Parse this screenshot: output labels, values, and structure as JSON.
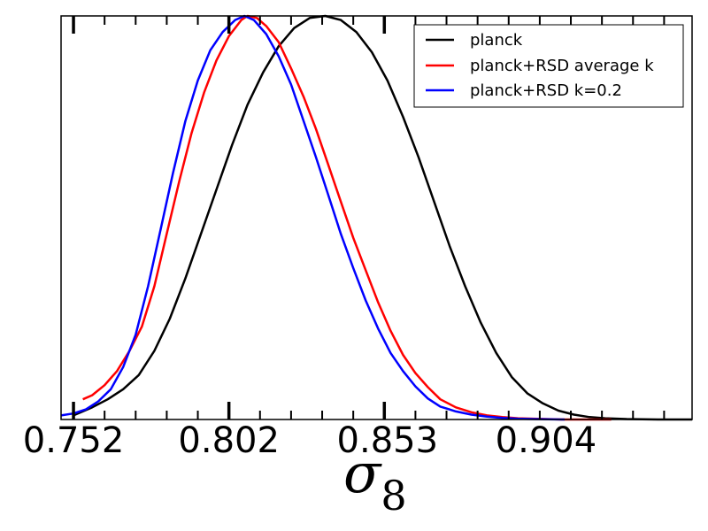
{
  "chart_data": {
    "type": "line",
    "xlabel_symbol": "σ",
    "xlabel_subscript": "8",
    "ylabel": "",
    "xlim": [
      0.748,
      0.951
    ],
    "ylim": [
      0,
      1
    ],
    "x_ticks": [
      0.752,
      0.802,
      0.853,
      0.904
    ],
    "x_tick_labels": [
      "0.752",
      "0.802",
      "0.853",
      "0.904"
    ],
    "grid": false,
    "legend_position": "top-right",
    "series": [
      {
        "name": "planck",
        "color": "#000000",
        "points": [
          [
            0.752,
            0.01
          ],
          [
            0.758,
            0.03
          ],
          [
            0.763,
            0.05
          ],
          [
            0.768,
            0.075
          ],
          [
            0.773,
            0.11
          ],
          [
            0.778,
            0.17
          ],
          [
            0.783,
            0.25
          ],
          [
            0.788,
            0.35
          ],
          [
            0.793,
            0.46
          ],
          [
            0.798,
            0.57
          ],
          [
            0.803,
            0.68
          ],
          [
            0.808,
            0.78
          ],
          [
            0.813,
            0.86
          ],
          [
            0.818,
            0.925
          ],
          [
            0.823,
            0.97
          ],
          [
            0.828,
            0.995
          ],
          [
            0.833,
            1.0
          ],
          [
            0.838,
            0.99
          ],
          [
            0.843,
            0.96
          ],
          [
            0.848,
            0.91
          ],
          [
            0.853,
            0.84
          ],
          [
            0.858,
            0.75
          ],
          [
            0.863,
            0.65
          ],
          [
            0.868,
            0.54
          ],
          [
            0.873,
            0.43
          ],
          [
            0.878,
            0.33
          ],
          [
            0.883,
            0.24
          ],
          [
            0.888,
            0.165
          ],
          [
            0.893,
            0.105
          ],
          [
            0.898,
            0.065
          ],
          [
            0.903,
            0.04
          ],
          [
            0.908,
            0.022
          ],
          [
            0.913,
            0.012
          ],
          [
            0.918,
            0.006
          ],
          [
            0.923,
            0.003
          ],
          [
            0.93,
            0.001
          ],
          [
            0.94,
            0.0
          ],
          [
            0.951,
            0.0
          ]
        ]
      },
      {
        "name": "planck+RSD average k",
        "color": "#ff0000",
        "points": [
          [
            0.755,
            0.05
          ],
          [
            0.758,
            0.06
          ],
          [
            0.762,
            0.085
          ],
          [
            0.766,
            0.12
          ],
          [
            0.77,
            0.17
          ],
          [
            0.774,
            0.23
          ],
          [
            0.778,
            0.33
          ],
          [
            0.782,
            0.46
          ],
          [
            0.786,
            0.59
          ],
          [
            0.79,
            0.71
          ],
          [
            0.794,
            0.81
          ],
          [
            0.798,
            0.89
          ],
          [
            0.802,
            0.95
          ],
          [
            0.806,
            0.99
          ],
          [
            0.808,
            1.0
          ],
          [
            0.811,
            0.995
          ],
          [
            0.814,
            0.975
          ],
          [
            0.818,
            0.935
          ],
          [
            0.822,
            0.87
          ],
          [
            0.826,
            0.8
          ],
          [
            0.83,
            0.72
          ],
          [
            0.834,
            0.63
          ],
          [
            0.838,
            0.54
          ],
          [
            0.842,
            0.45
          ],
          [
            0.846,
            0.37
          ],
          [
            0.85,
            0.29
          ],
          [
            0.854,
            0.22
          ],
          [
            0.858,
            0.16
          ],
          [
            0.862,
            0.115
          ],
          [
            0.866,
            0.08
          ],
          [
            0.87,
            0.05
          ],
          [
            0.875,
            0.03
          ],
          [
            0.88,
            0.018
          ],
          [
            0.885,
            0.01
          ],
          [
            0.89,
            0.006
          ],
          [
            0.895,
            0.003
          ],
          [
            0.9,
            0.002
          ],
          [
            0.91,
            0.0
          ],
          [
            0.925,
            0.0
          ]
        ]
      },
      {
        "name": "planck+RSD k=0.2",
        "color": "#0000ff",
        "points": [
          [
            0.748,
            0.01
          ],
          [
            0.752,
            0.015
          ],
          [
            0.756,
            0.025
          ],
          [
            0.76,
            0.045
          ],
          [
            0.764,
            0.075
          ],
          [
            0.768,
            0.13
          ],
          [
            0.772,
            0.21
          ],
          [
            0.776,
            0.33
          ],
          [
            0.78,
            0.47
          ],
          [
            0.784,
            0.61
          ],
          [
            0.788,
            0.74
          ],
          [
            0.792,
            0.84
          ],
          [
            0.796,
            0.915
          ],
          [
            0.8,
            0.96
          ],
          [
            0.804,
            0.99
          ],
          [
            0.807,
            1.0
          ],
          [
            0.81,
            0.99
          ],
          [
            0.814,
            0.955
          ],
          [
            0.818,
            0.9
          ],
          [
            0.822,
            0.83
          ],
          [
            0.826,
            0.74
          ],
          [
            0.83,
            0.65
          ],
          [
            0.834,
            0.555
          ],
          [
            0.838,
            0.46
          ],
          [
            0.842,
            0.375
          ],
          [
            0.846,
            0.295
          ],
          [
            0.85,
            0.225
          ],
          [
            0.854,
            0.165
          ],
          [
            0.858,
            0.12
          ],
          [
            0.862,
            0.082
          ],
          [
            0.866,
            0.052
          ],
          [
            0.87,
            0.032
          ],
          [
            0.875,
            0.02
          ],
          [
            0.88,
            0.012
          ],
          [
            0.885,
            0.007
          ],
          [
            0.89,
            0.004
          ],
          [
            0.895,
            0.002
          ],
          [
            0.9,
            0.001
          ],
          [
            0.91,
            0.0
          ]
        ]
      }
    ]
  }
}
